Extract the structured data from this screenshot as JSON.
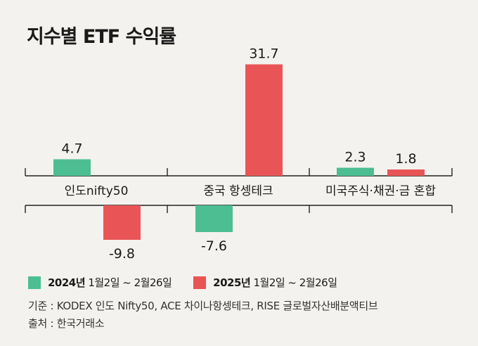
{
  "title": "지수별 ETF 수익률",
  "legend": [
    {
      "year": "2024년",
      "period": " 1월2일 ~ 2월26일",
      "color": "#4cbe92"
    },
    {
      "year": "2025년",
      "period": " 1월2일 ~ 2월26일",
      "color": "#e95556"
    }
  ],
  "notes": {
    "source_basis": "기준 : KODEX 인도 Nifty50, ACE 차이나항셍테크, RISE 글로벌자산배분액티브",
    "source": "출처 : 한국거래소"
  },
  "chart_data": {
    "type": "bar",
    "title": "지수별 ETF 수익률",
    "categories": [
      "인도nifty50",
      "중국 항셍테크",
      "미국주식·채권·금 혼합"
    ],
    "series": [
      {
        "name": "2024년 1월2일 ~ 2월26일",
        "values": [
          4.7,
          -7.6,
          2.3
        ],
        "labels": [
          "4.7",
          "-7.6",
          "2.3"
        ],
        "color": "#4cbe92"
      },
      {
        "name": "2025년 1월2일 ~ 2월26일",
        "values": [
          -9.8,
          31.7,
          1.8
        ],
        "labels": [
          "-9.8",
          "31.7",
          "1.8"
        ],
        "color": "#e95556"
      }
    ],
    "ylim": [
      -10,
      32
    ],
    "grid": false
  }
}
